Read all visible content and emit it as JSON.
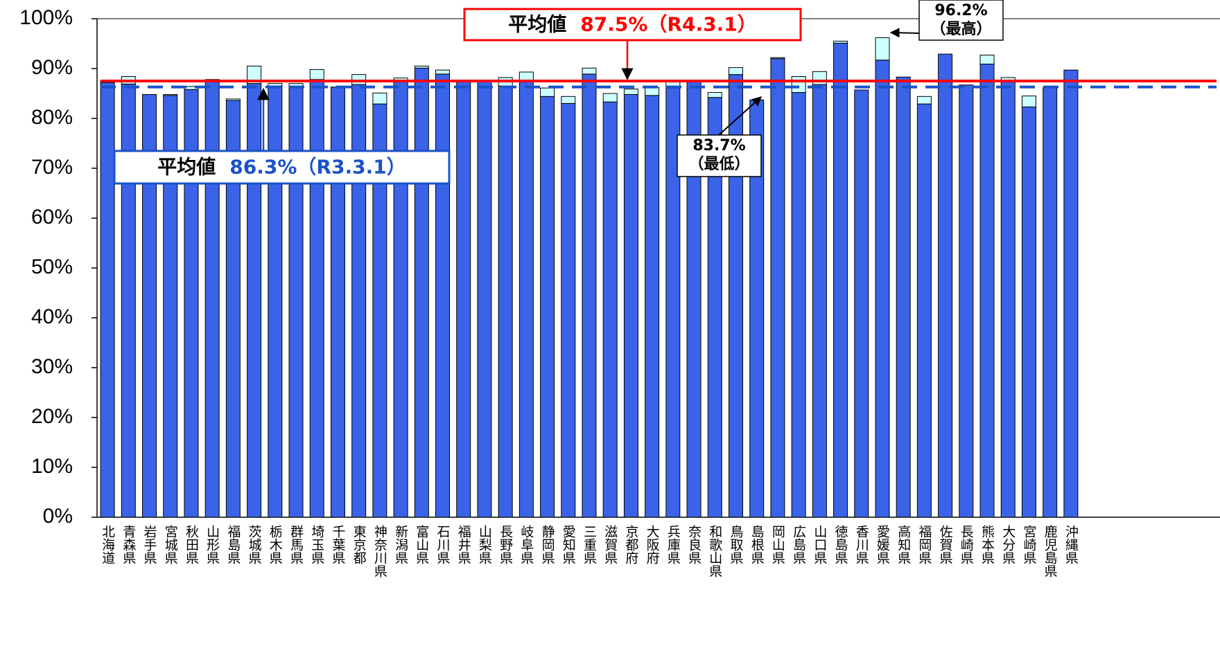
{
  "chart_data": {
    "type": "bar",
    "stacked": true,
    "categories": [
      "北海道",
      "青森県",
      "岩手県",
      "宮城県",
      "秋田県",
      "山形県",
      "福島県",
      "茨城県",
      "栃木県",
      "群馬県",
      "埼玉県",
      "千葉県",
      "東京都",
      "神奈川県",
      "新潟県",
      "富山県",
      "石川県",
      "福井県",
      "山梨県",
      "長野県",
      "岐阜県",
      "静岡県",
      "愛知県",
      "三重県",
      "滋賀県",
      "京都府",
      "大阪府",
      "兵庫県",
      "奈良県",
      "和歌山県",
      "鳥取県",
      "島根県",
      "岡山県",
      "広島県",
      "山口県",
      "徳島県",
      "香川県",
      "愛媛県",
      "高知県",
      "福岡県",
      "佐賀県",
      "長崎県",
      "熊本県",
      "大分県",
      "宮崎県",
      "鹿児島県",
      "沖縄県"
    ],
    "series": [
      {
        "color": "#3a63e8",
        "values": [
          87.2,
          86.9,
          84.8,
          84.6,
          85.8,
          87.6,
          83.6,
          87.0,
          86.5,
          86.2,
          87.8,
          86.3,
          86.8,
          82.9,
          87.5,
          90.1,
          88.9,
          87.4,
          87.3,
          86.5,
          87.5,
          84.4,
          83.0,
          88.9,
          83.3,
          84.8,
          84.6,
          86.1,
          87.5,
          84.2,
          88.8,
          83.7,
          92.0,
          85.2,
          86.8,
          95.1,
          85.7,
          91.7,
          88.3,
          82.9,
          92.9,
          86.7,
          90.9,
          87.7,
          82.3,
          86.2,
          89.7
        ]
      },
      {
        "color": "#ccffff",
        "values": [
          0.3,
          1.5,
          0,
          0.2,
          0.6,
          0.2,
          0.3,
          3.5,
          0.5,
          0.8,
          2.0,
          0,
          2.0,
          2.2,
          0.6,
          0.4,
          0.8,
          0,
          0,
          1.7,
          1.8,
          1.7,
          1.4,
          1.2,
          1.7,
          1.1,
          1.6,
          1.5,
          0,
          1.0,
          1.4,
          0,
          0.2,
          3.2,
          2.6,
          0.4,
          0,
          4.5,
          0,
          1.5,
          0,
          0,
          1.8,
          0.5,
          2.2,
          0,
          0
        ]
      }
    ],
    "ylim": [
      0,
      100
    ],
    "yticks": [
      {
        "value": 0,
        "label": "0%"
      },
      {
        "value": 10,
        "label": "10%"
      },
      {
        "value": 20,
        "label": "20%"
      },
      {
        "value": 30,
        "label": "30%"
      },
      {
        "value": 40,
        "label": "40%"
      },
      {
        "value": 50,
        "label": "50%"
      },
      {
        "value": 60,
        "label": "60%"
      },
      {
        "value": 70,
        "label": "70%"
      },
      {
        "value": 80,
        "label": "80%"
      },
      {
        "value": 90,
        "label": "90%"
      },
      {
        "value": 100,
        "label": "100%"
      }
    ],
    "reference_lines": [
      {
        "value": 87.5,
        "label": "平均値",
        "value_label": "87.5%（R4.3.1）",
        "color": "#ff0000",
        "style": "solid"
      },
      {
        "value": 86.3,
        "label": "平均値",
        "value_label": "86.3%（R3.3.1）",
        "color": "#1a52c8",
        "style": "dashed"
      }
    ],
    "annotations": [
      {
        "lines": [
          "96.2%",
          "（最高）"
        ]
      },
      {
        "lines": [
          "83.7%",
          "（最低）"
        ]
      }
    ]
  }
}
